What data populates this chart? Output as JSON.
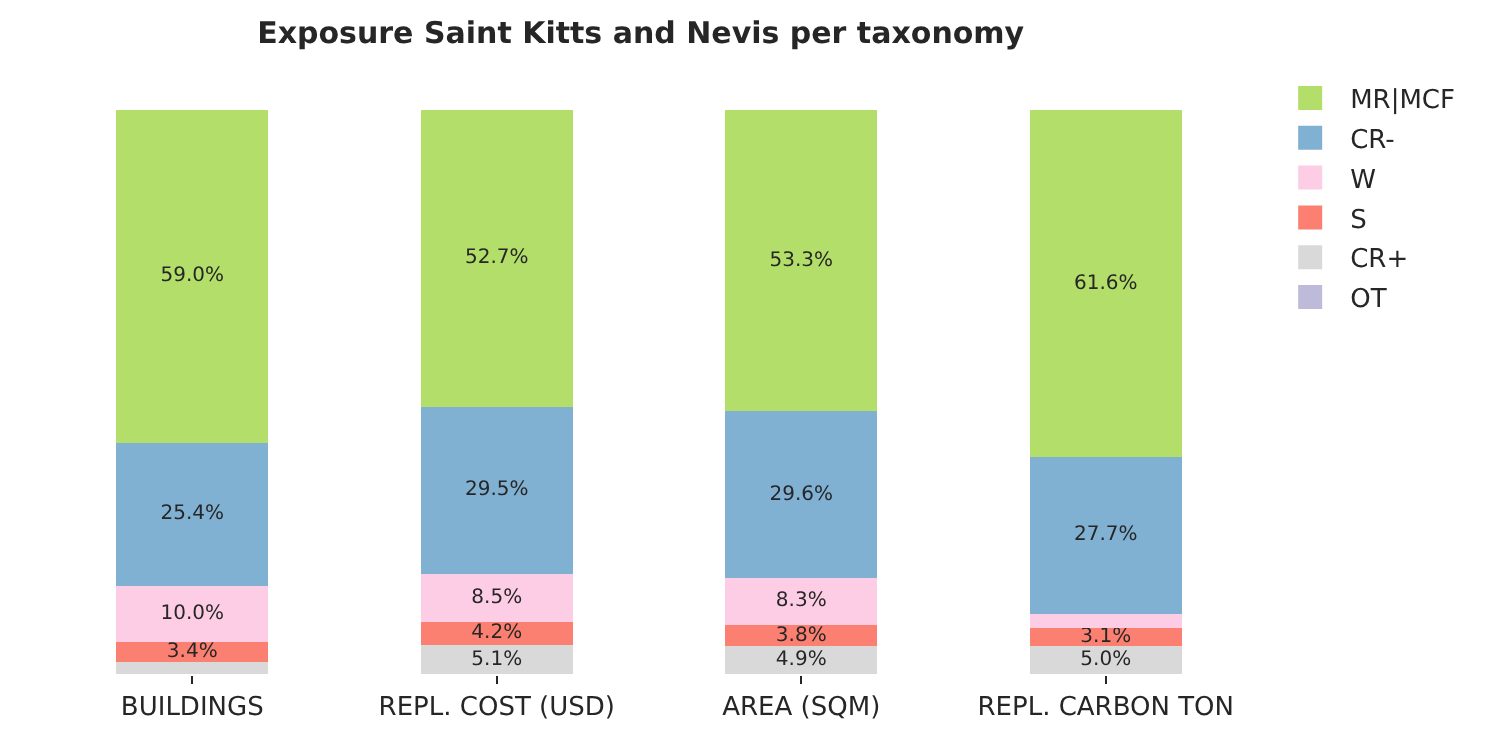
{
  "chart_data": {
    "type": "bar",
    "title": "Exposure Saint Kitts and Nevis per taxonomy",
    "stacked": true,
    "legend": "top right",
    "categories": [
      "BUILDINGS",
      "REPL. COST (USD)",
      "AREA (SQM)",
      "REPL. CARBON TON"
    ],
    "series": [
      {
        "name": "OT",
        "color": "#bebada",
        "values": [
          0,
          0,
          0,
          0
        ],
        "value_labels": [
          null,
          null,
          null,
          null
        ]
      },
      {
        "name": "CR+",
        "color": "#d9d9d9",
        "values": [
          2.2,
          5.1,
          4.9,
          5.0
        ],
        "value_labels": [
          null,
          "5.1%",
          "4.9%",
          "5.0%"
        ]
      },
      {
        "name": "S",
        "color": "#fb8072",
        "values": [
          3.4,
          4.2,
          3.8,
          3.1
        ],
        "value_labels": [
          "3.4%",
          "4.2%",
          "3.8%",
          "3.1%"
        ]
      },
      {
        "name": "W",
        "color": "#fccde5",
        "values": [
          10.0,
          8.5,
          8.3,
          2.6
        ],
        "value_labels": [
          "10.0%",
          "8.5%",
          "8.3%",
          null
        ]
      },
      {
        "name": "CR-",
        "color": "#80b1d3",
        "values": [
          25.4,
          29.5,
          29.6,
          27.7
        ],
        "value_labels": [
          "25.4%",
          "29.5%",
          "29.6%",
          "27.7%"
        ]
      },
      {
        "name": "MR|MCF",
        "color": "#b3de69",
        "values": [
          59.0,
          52.7,
          53.3,
          61.6
        ],
        "value_labels": [
          "59.0%",
          "52.7%",
          "53.3%",
          "61.6%"
        ]
      }
    ]
  }
}
